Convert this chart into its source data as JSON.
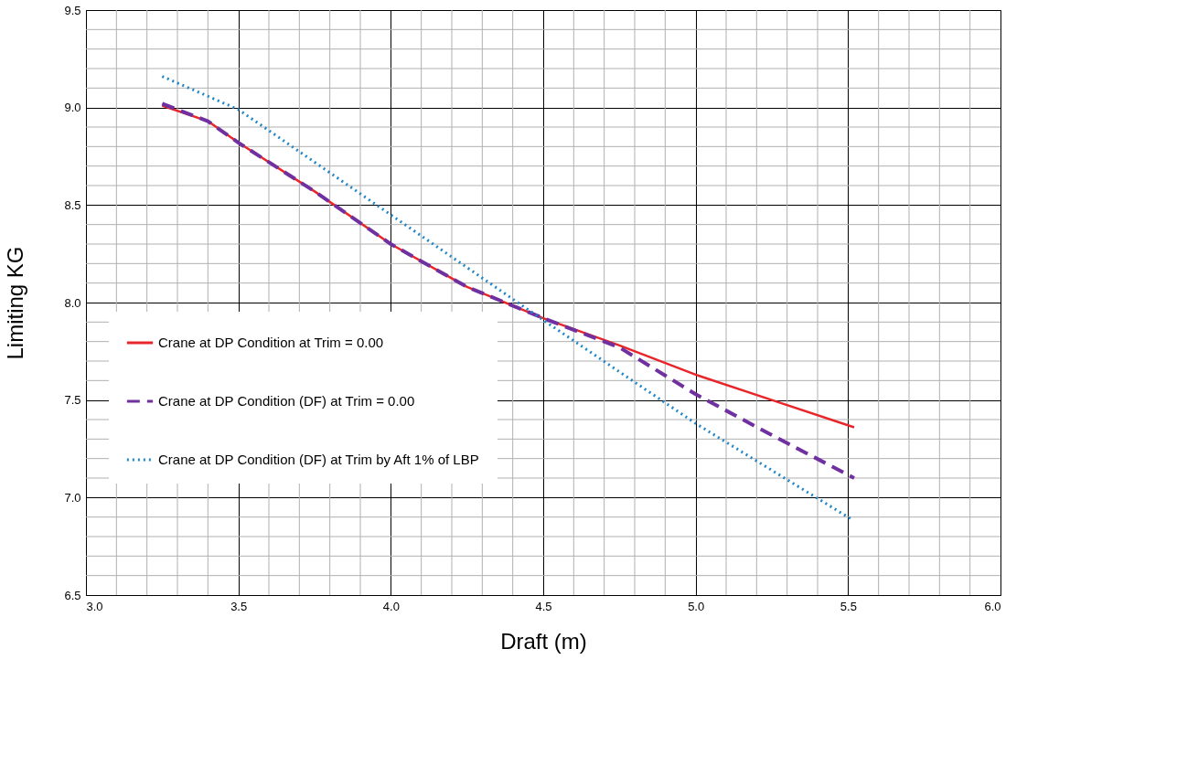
{
  "chart_data": {
    "type": "line",
    "xlabel": "Draft (m)",
    "ylabel": "Limiting KG",
    "xlim": [
      3.0,
      6.0
    ],
    "xticks": [
      {
        "value": 3,
        "label": "3.0"
      },
      3.5,
      {
        "value": 4,
        "label": "4.0"
      },
      4.5,
      {
        "value": 5,
        "label": "5.0"
      },
      5.5,
      {
        "value": 6,
        "label": "6.0"
      }
    ],
    "ylim": [
      6.5,
      9.5
    ],
    "yticks": [
      6.5,
      {
        "value": 7,
        "label": "7.0"
      },
      7.5,
      {
        "value": 8,
        "label": "8.0"
      },
      8.5,
      {
        "value": 9,
        "label": "9.0"
      },
      9.5
    ],
    "grid": true,
    "legend": "bottom left",
    "series": [
      {
        "name": "Crane at DP Condition at Trim = 0.00",
        "color": "#e8262a",
        "line_style": "solid",
        "x": [
          3.25,
          3.4,
          3.5,
          3.75,
          4.0,
          4.25,
          4.5,
          4.75,
          5.0,
          5.25,
          5.52
        ],
        "values": [
          9.01,
          8.93,
          8.82,
          8.57,
          8.3,
          8.08,
          7.92,
          7.78,
          7.63,
          7.5,
          7.36
        ]
      },
      {
        "name": "Crane at DP Condition (DF) at Trim = 0.00",
        "color": "#7030a0",
        "line_style": "dashed",
        "x": [
          3.25,
          3.4,
          3.5,
          3.75,
          4.0,
          4.25,
          4.5,
          4.75,
          5.0,
          5.25,
          5.52
        ],
        "values": [
          9.02,
          8.93,
          8.82,
          8.57,
          8.3,
          8.08,
          7.92,
          7.77,
          7.53,
          7.32,
          7.1
        ]
      },
      {
        "name": "Crane at DP Condition (DF) at Trim by Aft 1% of LBP",
        "color": "#1f86c8",
        "line_style": "dotted",
        "x": [
          3.25,
          3.5,
          4.0,
          4.5,
          5.0,
          5.51
        ],
        "values": [
          9.16,
          8.99,
          8.45,
          7.91,
          7.38,
          6.89
        ]
      }
    ]
  }
}
